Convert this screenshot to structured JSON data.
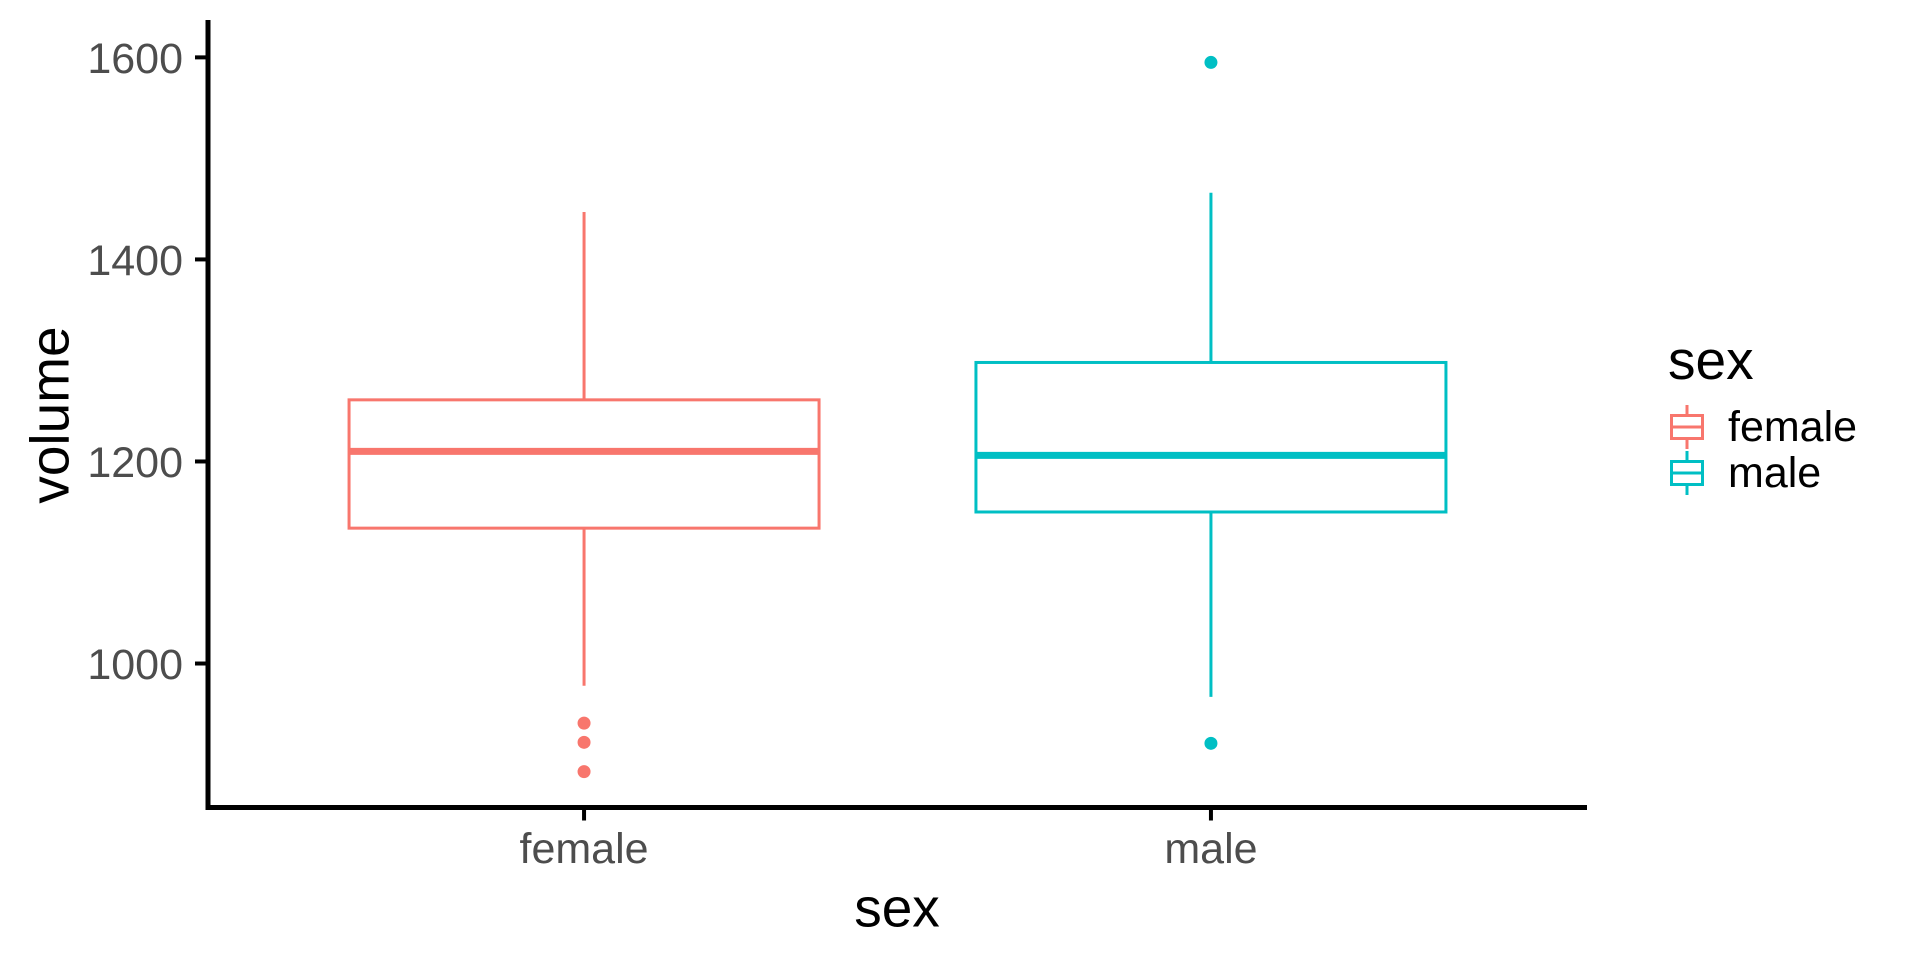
{
  "figure": {
    "background": "#FFFFFF"
  },
  "chart_data": {
    "type": "boxplot",
    "title": "",
    "xlabel": "sex",
    "ylabel": "volume",
    "categories": [
      "female",
      "male"
    ],
    "y_ticks": [
      1000,
      1200,
      1400,
      1600
    ],
    "ylim": [
      855,
      1637
    ],
    "grid": false,
    "series": [
      {
        "name": "female",
        "color": "#F8766D",
        "whisker_low": 978,
        "q1": 1134,
        "median": 1210,
        "q3": 1261,
        "whisker_high": 1447,
        "outliers": [
          941,
          922,
          893
        ]
      },
      {
        "name": "male",
        "color": "#00BFC4",
        "whisker_low": 967,
        "q1": 1150,
        "median": 1206,
        "q3": 1298,
        "whisker_high": 1466,
        "outliers": [
          1595,
          921
        ]
      }
    ],
    "legend": {
      "title": "sex",
      "position": "right",
      "entries": [
        {
          "label": "female",
          "color": "#F8766D"
        },
        {
          "label": "male",
          "color": "#00BFC4"
        }
      ]
    }
  },
  "style": {
    "axis_line_color": "#000000",
    "tick_label_color": "#4D4D4D",
    "title_color": "#000000",
    "box_fill": "#FFFFFF"
  }
}
